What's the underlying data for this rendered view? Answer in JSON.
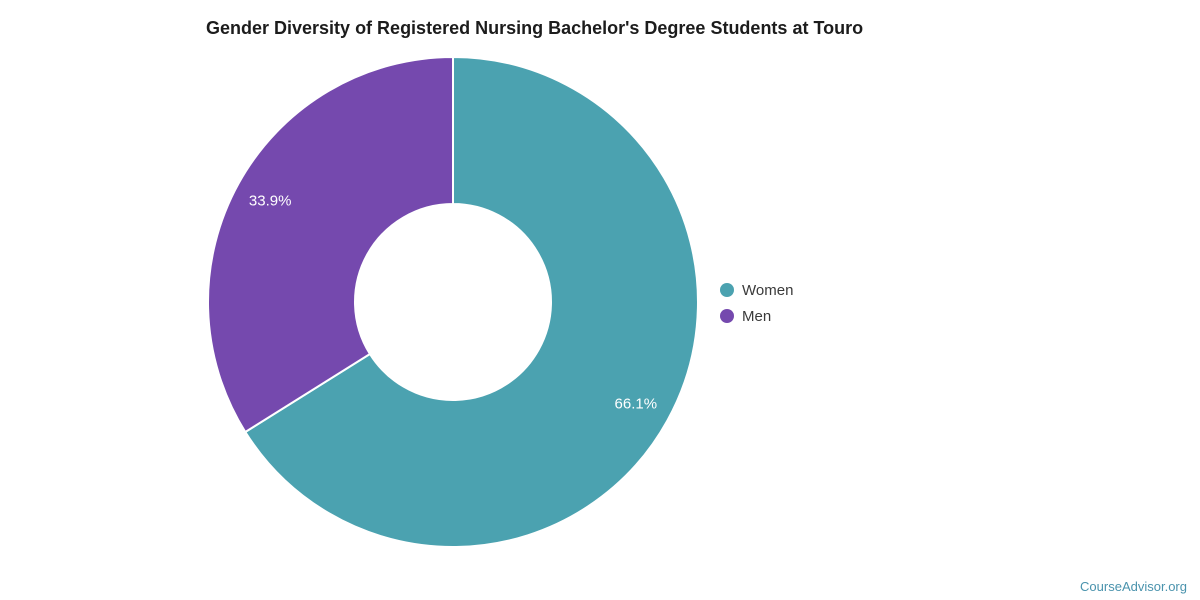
{
  "chart_data": {
    "type": "pie",
    "donut": true,
    "title": "Gender Diversity of Registered Nursing Bachelor's Degree Students at Touro",
    "categories": [
      "Women",
      "Men"
    ],
    "values": [
      66.1,
      33.9
    ],
    "data_labels": [
      "66.1%",
      "33.9%"
    ],
    "colors": [
      "#4ba2b0",
      "#7549ae"
    ],
    "legend_position": "right",
    "inner_radius_ratio": 0.4,
    "start_angle_deg": 0,
    "direction": "clockwise",
    "label_color": "#ffffff",
    "slice_border_color": "#ffffff"
  },
  "watermark": {
    "label": "CourseAdvisor.org",
    "color": "#4a93ad"
  }
}
